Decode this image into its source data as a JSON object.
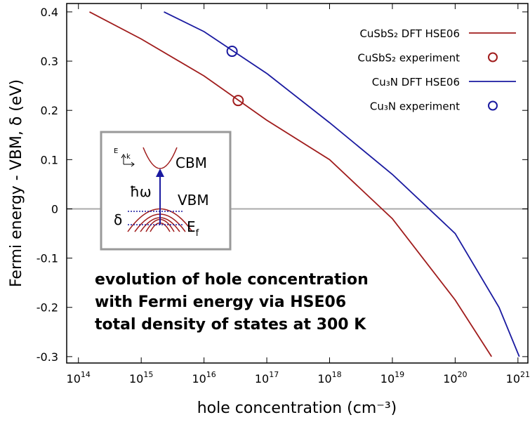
{
  "chart_data": {
    "type": "line",
    "xlabel": "hole concentration (cm⁻³)",
    "ylabel": "Fermi energy - VBM, δ (eV)",
    "xscale": "log",
    "xlim": [
      65000000000000.0,
      1.44e+21
    ],
    "ylim": [
      -0.313,
      0.417
    ],
    "xticks": [
      {
        "value": 100000000000000.0,
        "label": "10",
        "exponent": "14"
      },
      {
        "value": 1000000000000000.0,
        "label": "10",
        "exponent": "15"
      },
      {
        "value": 1e+16,
        "label": "10",
        "exponent": "16"
      },
      {
        "value": 1e+17,
        "label": "10",
        "exponent": "17"
      },
      {
        "value": 1e+18,
        "label": "10",
        "exponent": "18"
      },
      {
        "value": 1e+19,
        "label": "10",
        "exponent": "19"
      },
      {
        "value": 1e+20,
        "label": "10",
        "exponent": "20"
      },
      {
        "value": 1e+21,
        "label": "10",
        "exponent": "21"
      }
    ],
    "yticks": [
      0.4,
      0.3,
      0.2,
      0.1,
      0,
      -0.1,
      -0.2,
      -0.3
    ],
    "grid": false,
    "zero_line": true,
    "legend": "top-right",
    "series": [
      {
        "name": "CuSbS₂ DFT HSE06",
        "kind": "line",
        "color": "#a01c1c",
        "x": [
          150000000000000.0,
          1000000000000000.0,
          1e+16,
          1e+17,
          1e+18,
          1e+19,
          1e+20,
          3.8e+20
        ],
        "values": [
          0.4,
          0.345,
          0.27,
          0.18,
          0.1,
          -0.02,
          -0.185,
          -0.3
        ]
      },
      {
        "name": "CuSbS₂ experiment",
        "kind": "scatter",
        "color": "#a01c1c",
        "x": [
          3.5e+16
        ],
        "values": [
          0.22
        ]
      },
      {
        "name": "Cu₃N DFT HSE06",
        "kind": "line",
        "color": "#1a1aa0",
        "x": [
          2300000000000000.0,
          1e+16,
          1e+17,
          1e+18,
          1e+19,
          1e+20,
          5e+20,
          1.05e+21
        ],
        "values": [
          0.4,
          0.36,
          0.275,
          0.175,
          0.07,
          -0.05,
          -0.2,
          -0.3
        ]
      },
      {
        "name": "Cu₃N experiment",
        "kind": "scatter",
        "color": "#1a1aa0",
        "x": [
          2.8e+16
        ],
        "values": [
          0.32
        ]
      }
    ],
    "annotation": [
      "evolution of hole concentration",
      "with Fermi energy via HSE06",
      "total density of states at 300 K"
    ],
    "inset": {
      "cbm": "CBM",
      "photon": "ħω",
      "vbm": "VBM",
      "delta": "δ",
      "fermi": "E",
      "fermi_sub": "f",
      "axis_e": "E",
      "axis_k": "k"
    }
  }
}
